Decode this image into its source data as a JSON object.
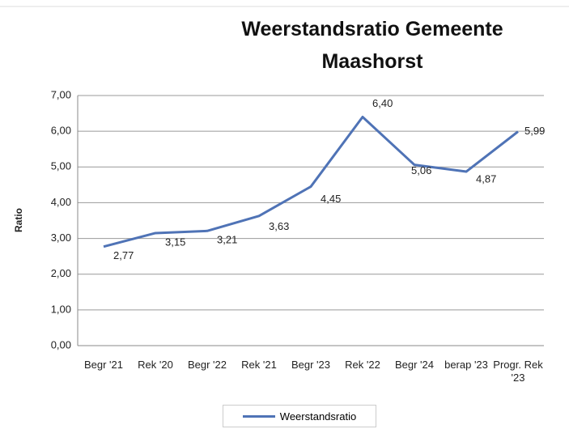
{
  "chart_data": {
    "type": "line",
    "title": "Weerstandsratio Gemeente Maashorst",
    "y_label": "Ratio",
    "categories": [
      "Begr '21",
      "Rek '20",
      "Begr '22",
      "Rek '21",
      "Begr '23",
      "Rek '22",
      "Begr '24",
      "berap '23",
      "Progr. Rek '23"
    ],
    "series": [
      {
        "name": "Weerstandsratio",
        "color": "#4f73b6",
        "values": [
          2.77,
          3.15,
          3.21,
          3.63,
          4.45,
          6.4,
          5.06,
          4.87,
          5.99
        ],
        "value_labels": [
          "2,77",
          "3,15",
          "3,21",
          "3,63",
          "4,45",
          "6,40",
          "5,06",
          "4,87",
          "5,99"
        ]
      }
    ],
    "ylim": [
      0,
      7
    ],
    "yticks": [
      {
        "value": 0,
        "label": "0,00"
      },
      {
        "value": 1,
        "label": "1,00"
      },
      {
        "value": 2,
        "label": "2,00"
      },
      {
        "value": 3,
        "label": "3,00"
      },
      {
        "value": 4,
        "label": "4,00"
      },
      {
        "value": 5,
        "label": "5,00"
      },
      {
        "value": 6,
        "label": "6,00"
      },
      {
        "value": 7,
        "label": "7,00"
      }
    ],
    "grid": true,
    "legend": "bottom"
  }
}
